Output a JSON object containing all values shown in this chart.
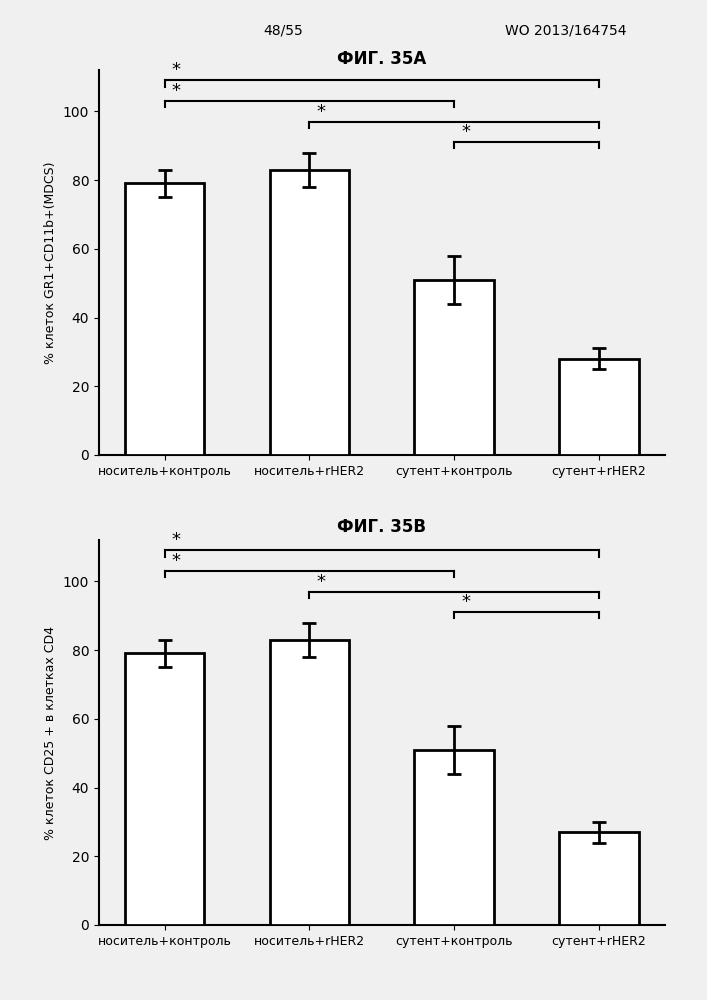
{
  "fig_title_top": "48/55",
  "fig_title_top_right": "WO 2013/164754",
  "chart_a": {
    "title": "ФИГ. 35А",
    "ylabel": "% клеток GR1+CD11b+(MDCS)",
    "categories": [
      "носитель+контроль",
      "носитель+rHER2",
      "сутент+контроль",
      "сутент+rHER2"
    ],
    "values": [
      79,
      83,
      51,
      28
    ],
    "errors": [
      4,
      5,
      7,
      3
    ],
    "ylim": [
      0,
      112
    ],
    "yticks": [
      0,
      20,
      40,
      60,
      80,
      100
    ]
  },
  "chart_b": {
    "title": "ФИГ. 35В",
    "ylabel": "% клеток CD25 + в клетках CD4",
    "categories": [
      "носитель+контроль",
      "носитель+rHER2",
      "сутент+контроль",
      "сутент+rHER2"
    ],
    "values": [
      79,
      83,
      51,
      27
    ],
    "errors": [
      4,
      5,
      7,
      3
    ],
    "ylim": [
      0,
      112
    ],
    "yticks": [
      0,
      20,
      40,
      60,
      80,
      100
    ]
  },
  "bar_color": "white",
  "bar_edgecolor": "black",
  "bar_linewidth": 2.0,
  "bar_width": 0.55,
  "error_color": "black",
  "error_linewidth": 2.0,
  "error_capsize": 5,
  "background_color": "#f0f0f0",
  "fontsize_title": 12,
  "fontsize_label": 9,
  "fontsize_tick": 10,
  "fontsize_xticklabel": 9,
  "fontsize_header": 10
}
